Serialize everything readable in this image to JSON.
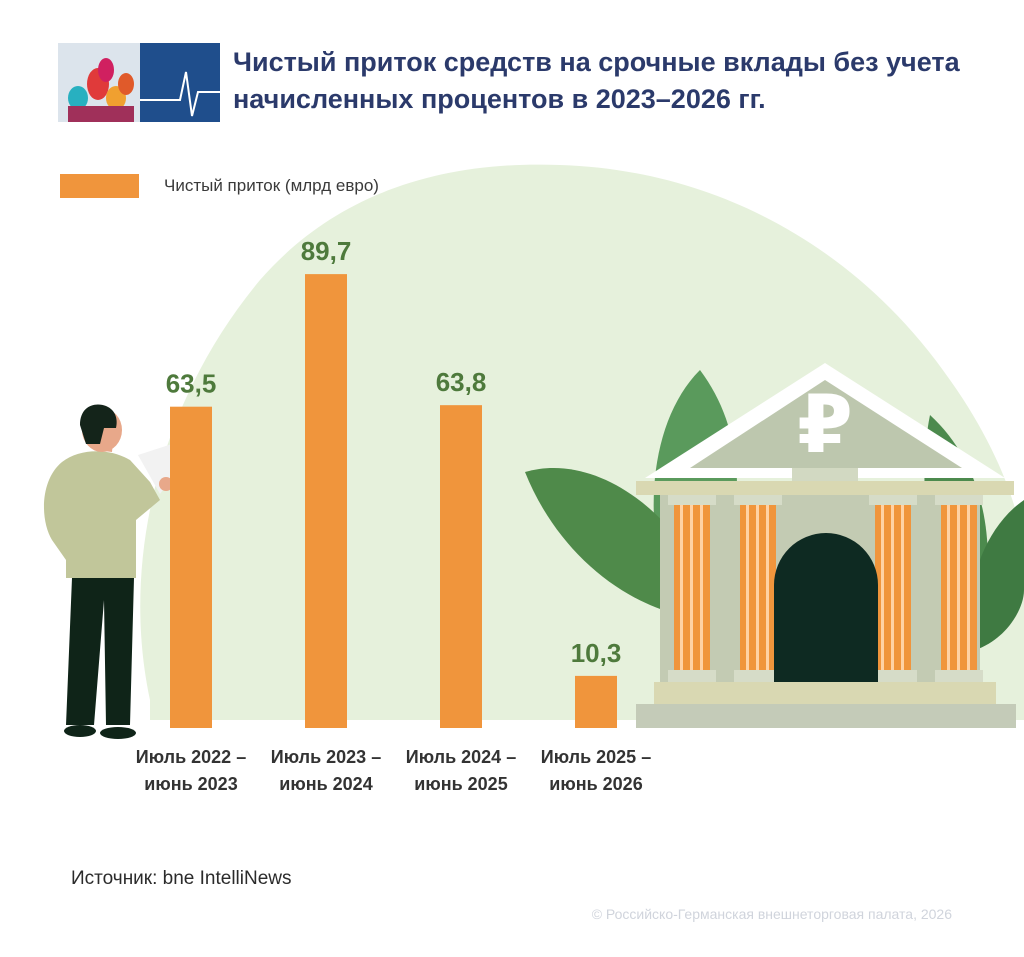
{
  "header": {
    "title": "Чистый приток средств на срочные вклады без учета начисленных процентов в 2023–2026 гг."
  },
  "colors": {
    "bar": "#f0953c",
    "value_label": "#4e7a3c",
    "title": "#2b3a6b",
    "background_blob": "#e6f1dc"
  },
  "chart_data": {
    "type": "bar",
    "categories": [
      [
        "Июль 2022 –",
        "июнь 2023"
      ],
      [
        "Июль 2023 –",
        "июнь 2024"
      ],
      [
        "Июль 2024 –",
        "июнь 2025"
      ],
      [
        "Июль 2025 –",
        "июнь 2026"
      ]
    ],
    "value_labels": [
      "63,5",
      "89,7",
      "63,8",
      "10,3"
    ],
    "series": [
      {
        "name": "Чистый приток (млрд евро)",
        "values": [
          63.5,
          89.7,
          63.8,
          10.3
        ]
      }
    ],
    "legend_position": "top-left",
    "ylim": [
      0,
      100
    ],
    "grid": false,
    "title": "",
    "xlabel": "",
    "ylabel": ""
  },
  "footer": {
    "source": "Источник: bne IntelliNews",
    "copyright": "© Российско-Германская внешнеторговая палата, 2026"
  }
}
